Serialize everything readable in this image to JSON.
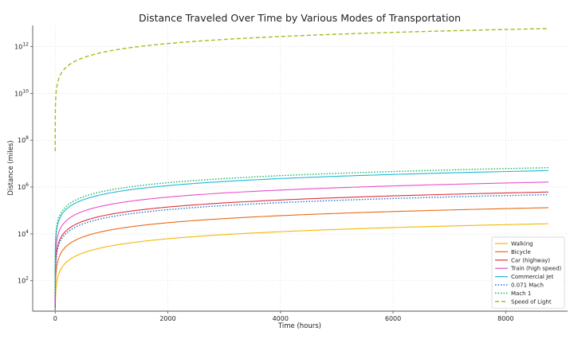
{
  "chart_data": {
    "type": "line",
    "title": "Distance Traveled Over Time by Various Modes of Transportation",
    "xlabel": "Time (hours)",
    "ylabel": "Distance (miles)",
    "xlim": [
      -400,
      9100
    ],
    "ylim_log10": [
      0.7,
      12.9
    ],
    "y_scale": "log",
    "grid": true,
    "legend_position": "lower-right",
    "x_ticks": [
      {
        "value": 0,
        "label": "0"
      },
      {
        "value": 2000,
        "label": "2000"
      },
      {
        "value": 4000,
        "label": "4000"
      },
      {
        "value": 6000,
        "label": "6000"
      },
      {
        "value": 8000,
        "label": "8000"
      }
    ],
    "y_ticks": [
      {
        "value": 2,
        "base": "10",
        "exp": "2"
      },
      {
        "value": 4,
        "base": "10",
        "exp": "4"
      },
      {
        "value": 6,
        "base": "10",
        "exp": "6"
      },
      {
        "value": 8,
        "base": "10",
        "exp": "8"
      },
      {
        "value": 10,
        "base": "10",
        "exp": "10"
      },
      {
        "value": 12,
        "base": "10",
        "exp": "12"
      }
    ],
    "x_range": [
      0,
      8760
    ],
    "series": [
      {
        "name": "Walking",
        "speed_mph": 3.1,
        "color": "#f5b700",
        "dash": "solid"
      },
      {
        "name": "Bicycle",
        "speed_mph": 15,
        "color": "#e86a12",
        "dash": "solid"
      },
      {
        "name": "Car (highway)",
        "speed_mph": 70,
        "color": "#e0303a",
        "dash": "solid"
      },
      {
        "name": "Train (high speed)",
        "speed_mph": 186,
        "color": "#e94fc8",
        "dash": "solid"
      },
      {
        "name": "Commercial Jet",
        "speed_mph": 575,
        "color": "#1fb8d8",
        "dash": "solid"
      },
      {
        "name": "0.071 Mach",
        "speed_mph": 54,
        "color": "#1a73c9",
        "dash": "dotted"
      },
      {
        "name": "Mach 1",
        "speed_mph": 767,
        "color": "#17b35a",
        "dash": "dotted"
      },
      {
        "name": "Speed of Light",
        "speed_mph": 670616629,
        "color": "#a7bb1c",
        "dash": "dashed"
      }
    ]
  }
}
